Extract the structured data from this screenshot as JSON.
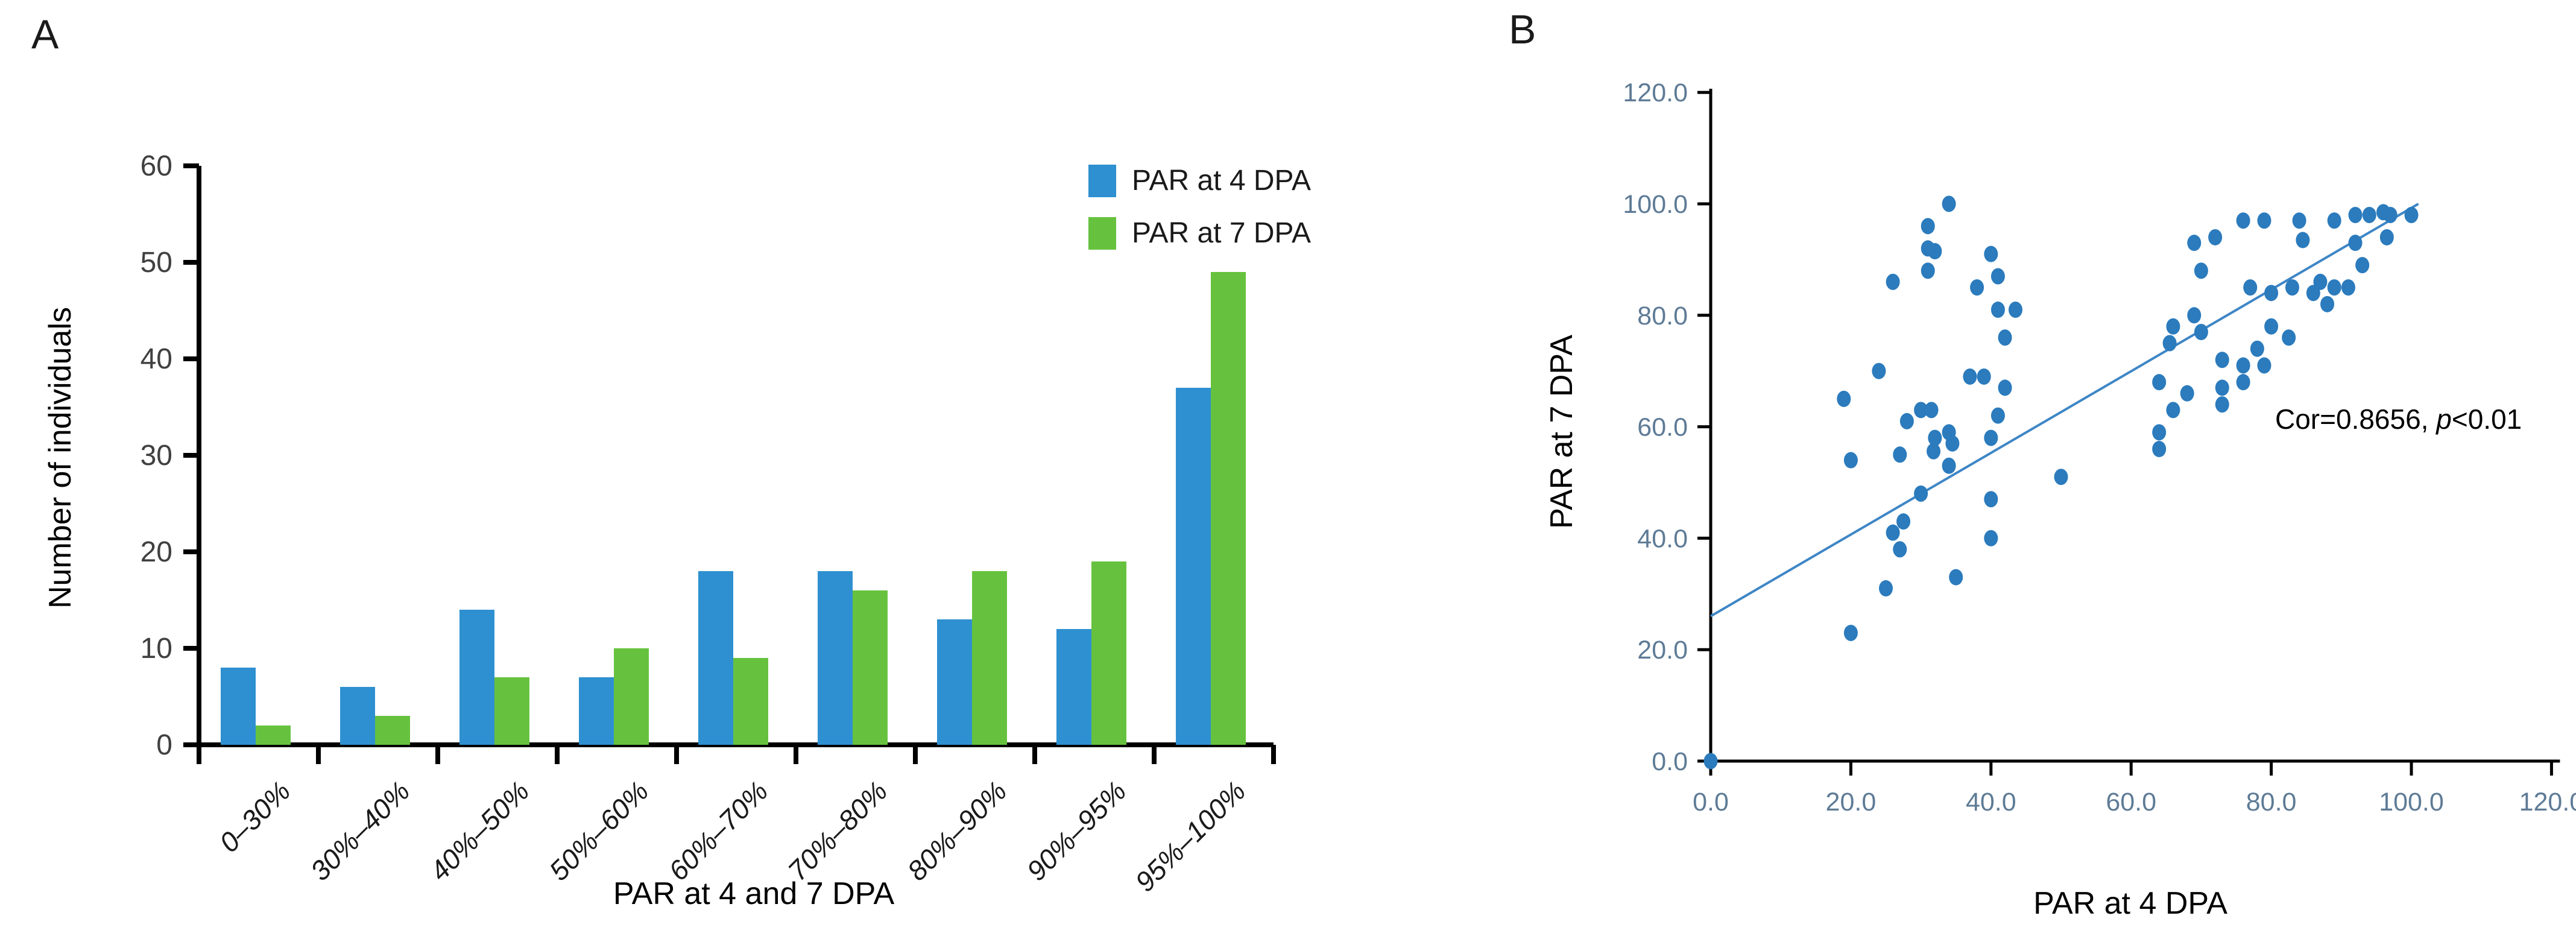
{
  "figure": {
    "panel_a_letter": "A",
    "panel_b_letter": "B"
  },
  "chart_data": [
    {
      "type": "bar",
      "panel": "A",
      "title": "",
      "xlabel": "PAR at 4 and 7 DPA",
      "ylabel": "Number of individuals",
      "categories": [
        "0–30%",
        "30%–40%",
        "40%–50%",
        "50%–60%",
        "60%–70%",
        "70%–80%",
        "80%–90%",
        "90%–95%",
        "95%–100%"
      ],
      "series": [
        {
          "name": "PAR at 4 DPA",
          "color": "#2E90D0",
          "values": [
            8,
            6,
            14,
            7,
            18,
            18,
            13,
            12,
            37
          ]
        },
        {
          "name": "PAR at 7 DPA",
          "color": "#66C23E",
          "values": [
            2,
            3,
            7,
            10,
            9,
            16,
            18,
            19,
            49
          ]
        }
      ],
      "ylim": [
        0,
        60
      ],
      "ytick_step": 10,
      "ytick_labels": [
        "0",
        "10",
        "20",
        "30",
        "40",
        "50",
        "60"
      ],
      "grid": false,
      "legend_position": "top-right",
      "axis_color": "#000000",
      "ytick_label_color": "#404040",
      "category_label_color": "#1a1a1a"
    },
    {
      "type": "scatter",
      "panel": "B",
      "title": "",
      "xlabel": "PAR at 4 DPA",
      "ylabel": "PAR at 7 DPA",
      "xlim": [
        0,
        120
      ],
      "ylim": [
        0,
        120
      ],
      "xtick_labels": [
        "0.0",
        "20.0",
        "40.0",
        "60.0",
        "80.0",
        "100.0",
        "120.0"
      ],
      "ytick_labels": [
        "0.0",
        "20.0",
        "40.0",
        "60.0",
        "80.0",
        "100.0",
        "120.0"
      ],
      "tick_step": 20,
      "point_color": "#2B7BBD",
      "tick_label_color": "#5E7B96",
      "axis_color": "#000000",
      "annotation": {
        "prefix": "Cor=0.8656, ",
        "italic": "p",
        "suffix": "<0.01"
      },
      "trendline": {
        "x1": 0,
        "y1": 26,
        "x2": 101,
        "y2": 100,
        "color": "#3E86C6"
      },
      "grid": false,
      "points": [
        [
          0,
          0
        ],
        [
          20,
          23
        ],
        [
          25,
          31
        ],
        [
          27,
          38
        ],
        [
          26,
          41
        ],
        [
          27.5,
          43
        ],
        [
          35,
          33
        ],
        [
          30,
          48
        ],
        [
          40,
          47
        ],
        [
          40,
          40
        ],
        [
          20,
          54
        ],
        [
          27,
          55
        ],
        [
          31.8,
          55.6
        ],
        [
          34,
          53
        ],
        [
          32,
          58
        ],
        [
          34,
          59
        ],
        [
          34.5,
          57
        ],
        [
          28,
          61
        ],
        [
          30,
          63
        ],
        [
          31.5,
          63
        ],
        [
          19,
          65
        ],
        [
          24,
          70
        ],
        [
          37,
          69
        ],
        [
          39,
          69
        ],
        [
          42,
          67
        ],
        [
          41,
          62
        ],
        [
          40,
          58
        ],
        [
          42,
          76
        ],
        [
          41,
          81
        ],
        [
          43.5,
          81
        ],
        [
          41,
          87
        ],
        [
          38,
          85
        ],
        [
          40,
          91
        ],
        [
          26,
          86
        ],
        [
          31,
          88
        ],
        [
          31,
          92
        ],
        [
          32,
          91.5
        ],
        [
          31,
          96
        ],
        [
          34,
          100
        ],
        [
          50,
          51
        ],
        [
          64,
          68
        ],
        [
          64,
          59
        ],
        [
          64,
          56
        ],
        [
          66,
          78
        ],
        [
          65.5,
          75
        ],
        [
          69,
          80
        ],
        [
          70,
          77
        ],
        [
          73,
          72
        ],
        [
          73,
          67
        ],
        [
          73,
          64
        ],
        [
          68,
          66
        ],
        [
          66,
          63
        ],
        [
          76,
          71
        ],
        [
          76,
          68
        ],
        [
          78,
          74
        ],
        [
          79,
          71
        ],
        [
          80,
          78
        ],
        [
          82.5,
          76
        ],
        [
          86,
          84
        ],
        [
          88,
          82
        ],
        [
          87,
          86
        ],
        [
          89,
          85
        ],
        [
          91,
          85
        ],
        [
          77,
          85
        ],
        [
          80,
          84
        ],
        [
          83,
          85
        ],
        [
          69,
          93
        ],
        [
          72,
          94
        ],
        [
          70,
          88
        ],
        [
          84.5,
          93.5
        ],
        [
          76,
          97
        ],
        [
          79,
          97
        ],
        [
          84,
          97
        ],
        [
          89,
          97
        ],
        [
          92,
          98
        ],
        [
          94,
          98
        ],
        [
          96,
          98.5
        ],
        [
          97,
          98
        ],
        [
          100,
          98
        ],
        [
          92,
          93
        ],
        [
          96.5,
          94
        ],
        [
          93,
          89
        ]
      ]
    }
  ]
}
